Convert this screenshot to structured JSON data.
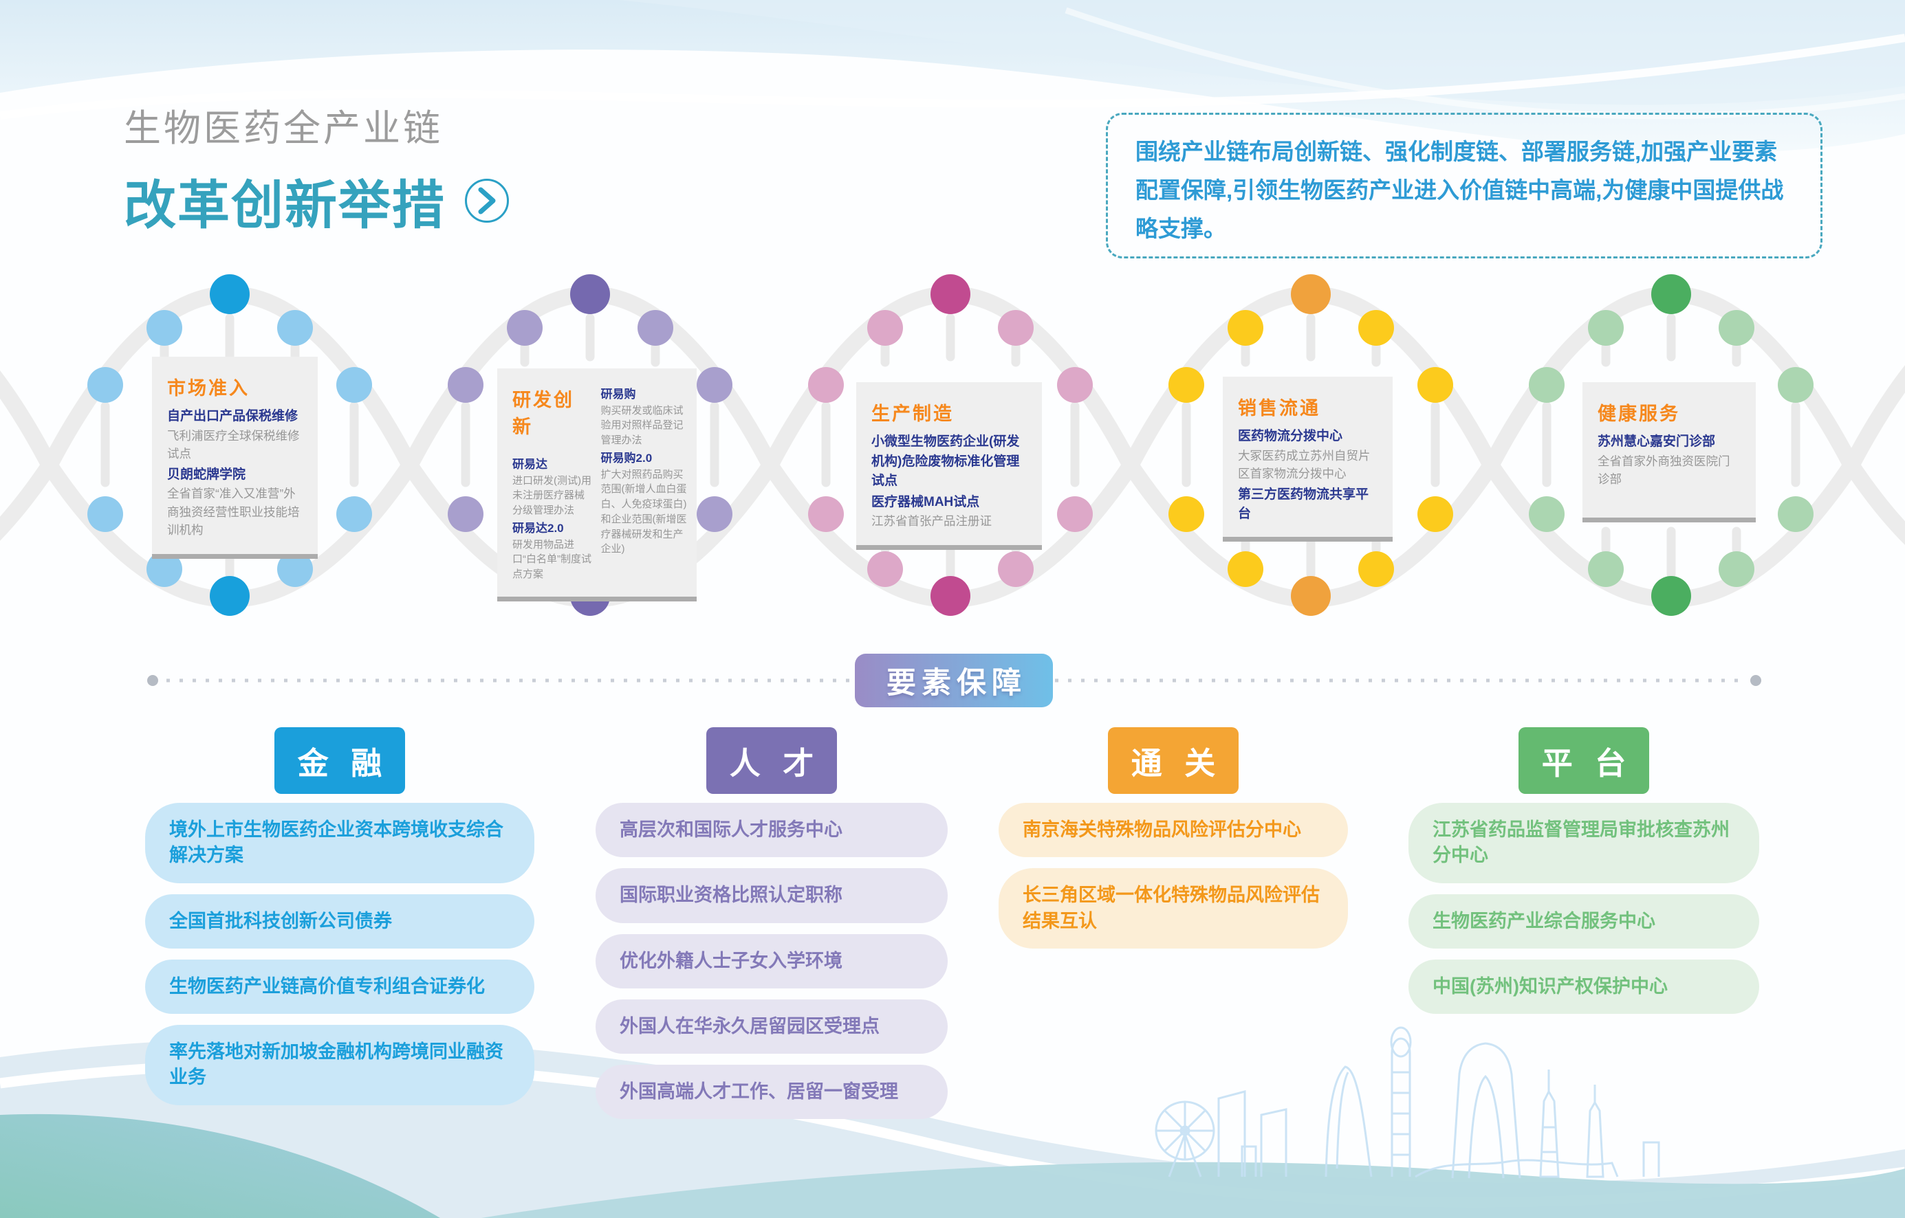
{
  "header": {
    "subtitle": "生物医药全产业链",
    "title": "改革创新举措",
    "intro": "围绕产业链布局创新链、强化制度链、部署服务链,加强产业要素配置保障,引领生物医药产业进入价值链中高端,为健康中国提供战略支撑。"
  },
  "chain": {
    "strand_color": "#ECECEC",
    "nodes": [
      {
        "key": "market-access",
        "title": "市场准入",
        "colors": {
          "dark": "#18A0DC",
          "light": "#8FCBEE"
        },
        "columns": [
          [
            {
              "b": "自产出口产品保税维修"
            },
            {
              "t": "飞利浦医疗全球保税维修试点"
            },
            {
              "b": "贝朗蛇牌学院"
            },
            {
              "t": "全省首家“准入又准营”外商独资经营性职业技能培训机构"
            }
          ]
        ]
      },
      {
        "key": "rd-innovation",
        "title": "研发创新",
        "colors": {
          "dark": "#7569AF",
          "light": "#A89FCD"
        },
        "columns": [
          [
            {
              "b": "研易达"
            },
            {
              "t": "进口研发(测试)用未注册医疗器械分级管理办法"
            },
            {
              "b": "研易达2.0"
            },
            {
              "t": "研发用物品进口“白名单”制度试点方案"
            }
          ],
          [
            {
              "b": "研易购"
            },
            {
              "t": "购买研发或临床试验用对照样品登记管理办法"
            },
            {
              "b": "研易购2.0"
            },
            {
              "t": "扩大对照药品购买范围(新增人血白蛋白、人免疫球蛋白)和企业范围(新增医疗器械研发和生产企业)"
            }
          ]
        ]
      },
      {
        "key": "manufacturing",
        "title": "生产制造",
        "colors": {
          "dark": "#C14B90",
          "light": "#DDA8C8"
        },
        "columns": [
          [
            {
              "b": "小微型生物医药企业(研发机构)危险废物标准化管理试点"
            },
            {
              "b": "医疗器械MAH试点"
            },
            {
              "t": "江苏省首张产品注册证"
            }
          ]
        ]
      },
      {
        "key": "distribution",
        "title": "销售流通",
        "colors": {
          "dark": "#F0A23D",
          "light": "#FCCB1D"
        },
        "columns": [
          [
            {
              "b": "医药物流分拨中心"
            },
            {
              "t": "大冢医药成立苏州自贸片区首家物流分拨中心"
            },
            {
              "b": "第三方医药物流共享平台"
            }
          ]
        ]
      },
      {
        "key": "health-service",
        "title": "健康服务",
        "colors": {
          "dark": "#4BAE60",
          "light": "#ABD6B1"
        },
        "columns": [
          [
            {
              "b": "苏州慧心嘉安门诊部"
            },
            {
              "t": "全省首家外商独资医院门诊部"
            }
          ]
        ]
      }
    ]
  },
  "divider": {
    "label": "要素保障",
    "gradient": [
      "#9A8CC6",
      "#6FC0E8"
    ],
    "dot_color": "#C9CED6"
  },
  "sections": [
    {
      "key": "finance",
      "label": "金 融",
      "header_bg": "#1B9FDB",
      "pill_bg": "#C9E7F8",
      "pill_color": "#1B9FDB",
      "items": [
        "境外上市生物医药企业资本跨境收支综合解决方案",
        "全国首批科技创新公司债券",
        "生物医药产业链高价值专利组合证券化",
        "率先落地对新加坡金融机构跨境同业融资业务"
      ]
    },
    {
      "key": "talent",
      "label": "人 才",
      "header_bg": "#7B71B3",
      "pill_bg": "#E6E4F1",
      "pill_color": "#8379B8",
      "items": [
        "高层次和国际人才服务中心",
        "国际职业资格比照认定职称",
        "优化外籍人士子女入学环境",
        "外国人在华永久居留园区受理点",
        "外国高端人才工作、居留一窗受理"
      ]
    },
    {
      "key": "customs",
      "label": "通 关",
      "header_bg": "#F4A534",
      "pill_bg": "#FCEED6",
      "pill_color": "#F3981B",
      "items": [
        "南京海关特殊物品风险评估分中心",
        "长三角区域一体化特殊物品风险评估结果互认"
      ]
    },
    {
      "key": "platform",
      "label": "平 台",
      "header_bg": "#64BA70",
      "pill_bg": "#E3F1E4",
      "pill_color": "#72C17D",
      "items": [
        "江苏省药品监督管理局审批核查苏州分中心",
        "生物医药产业综合服务中心",
        "中国(苏州)知识产权保护中心"
      ]
    }
  ]
}
